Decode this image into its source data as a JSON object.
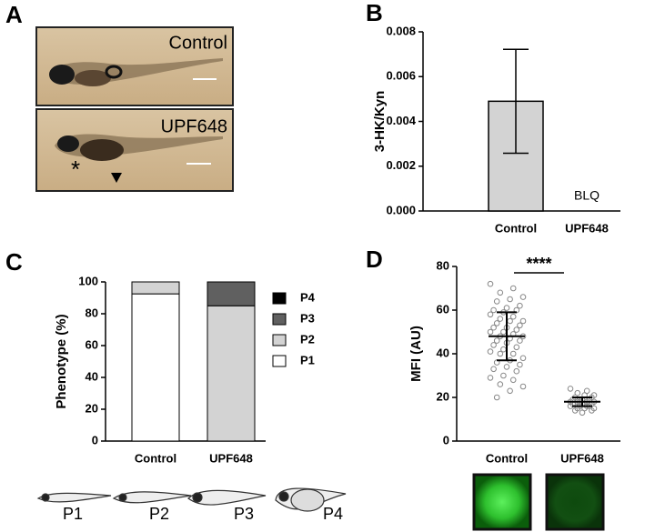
{
  "panels": {
    "letters": [
      "A",
      "B",
      "C",
      "D"
    ],
    "photo_labels": [
      "Control",
      "UPF648"
    ],
    "photo_marks": [
      "*"
    ],
    "stage_labels": [
      "P1",
      "P2",
      "P3",
      "P4"
    ]
  },
  "chart_data": [
    {
      "type": "bar",
      "ylabel": "3-HK/Kyn",
      "categories": [
        "Control",
        "UPF648"
      ],
      "values": [
        0.0049,
        null
      ],
      "errors": [
        0.00232,
        null
      ],
      "color": "#d3d3d3",
      "annotation": "BLQ",
      "ylim": [
        0,
        0.008
      ],
      "yticks": [
        {
          "value": 0,
          "label": "0.000"
        },
        0.002,
        0.004,
        0.006,
        0.008
      ]
    },
    {
      "type": "stacked-bar",
      "ylabel": "Phenotype (%)",
      "categories": [
        "Control",
        "UPF648"
      ],
      "series": [
        {
          "name": "P1",
          "color": "#ffffff",
          "values": [
            92.5,
            0
          ]
        },
        {
          "name": "P2",
          "color": "#d3d3d3",
          "values": [
            7.5,
            85
          ]
        },
        {
          "name": "P3",
          "color": "#606060",
          "values": [
            0,
            15
          ]
        },
        {
          "name": "P4",
          "color": "#000000",
          "values": [
            0,
            0
          ]
        }
      ],
      "ylim": [
        0,
        100
      ],
      "yticks": [
        0,
        20,
        40,
        60,
        80,
        100
      ]
    },
    {
      "type": "dot",
      "ylabel": "MFI (AU)",
      "categories": [
        "Control",
        "UPF648"
      ],
      "groups": [
        {
          "values": [
            72,
            70,
            68,
            66,
            65,
            64,
            62,
            61,
            60,
            60,
            59,
            58,
            57,
            56,
            55,
            55,
            54,
            53,
            52,
            52,
            51,
            50,
            50,
            49,
            48,
            48,
            47,
            46,
            46,
            45,
            44,
            43,
            42,
            41,
            40,
            40,
            38,
            37,
            36,
            35,
            34,
            33,
            32,
            30,
            29,
            28,
            26,
            25,
            23,
            20
          ],
          "mean": 48,
          "sd": 11
        },
        {
          "values": [
            24,
            23,
            22,
            21,
            21,
            20,
            20,
            19,
            19,
            19,
            18,
            18,
            18,
            18,
            18,
            17,
            17,
            17,
            17,
            17,
            16,
            16,
            16,
            16,
            15,
            15,
            15,
            14,
            14,
            13
          ],
          "mean": 18,
          "sd": 2
        }
      ],
      "annotation": "****",
      "ylim": [
        0,
        80
      ],
      "yticks": [
        0,
        20,
        40,
        60,
        80
      ]
    }
  ]
}
